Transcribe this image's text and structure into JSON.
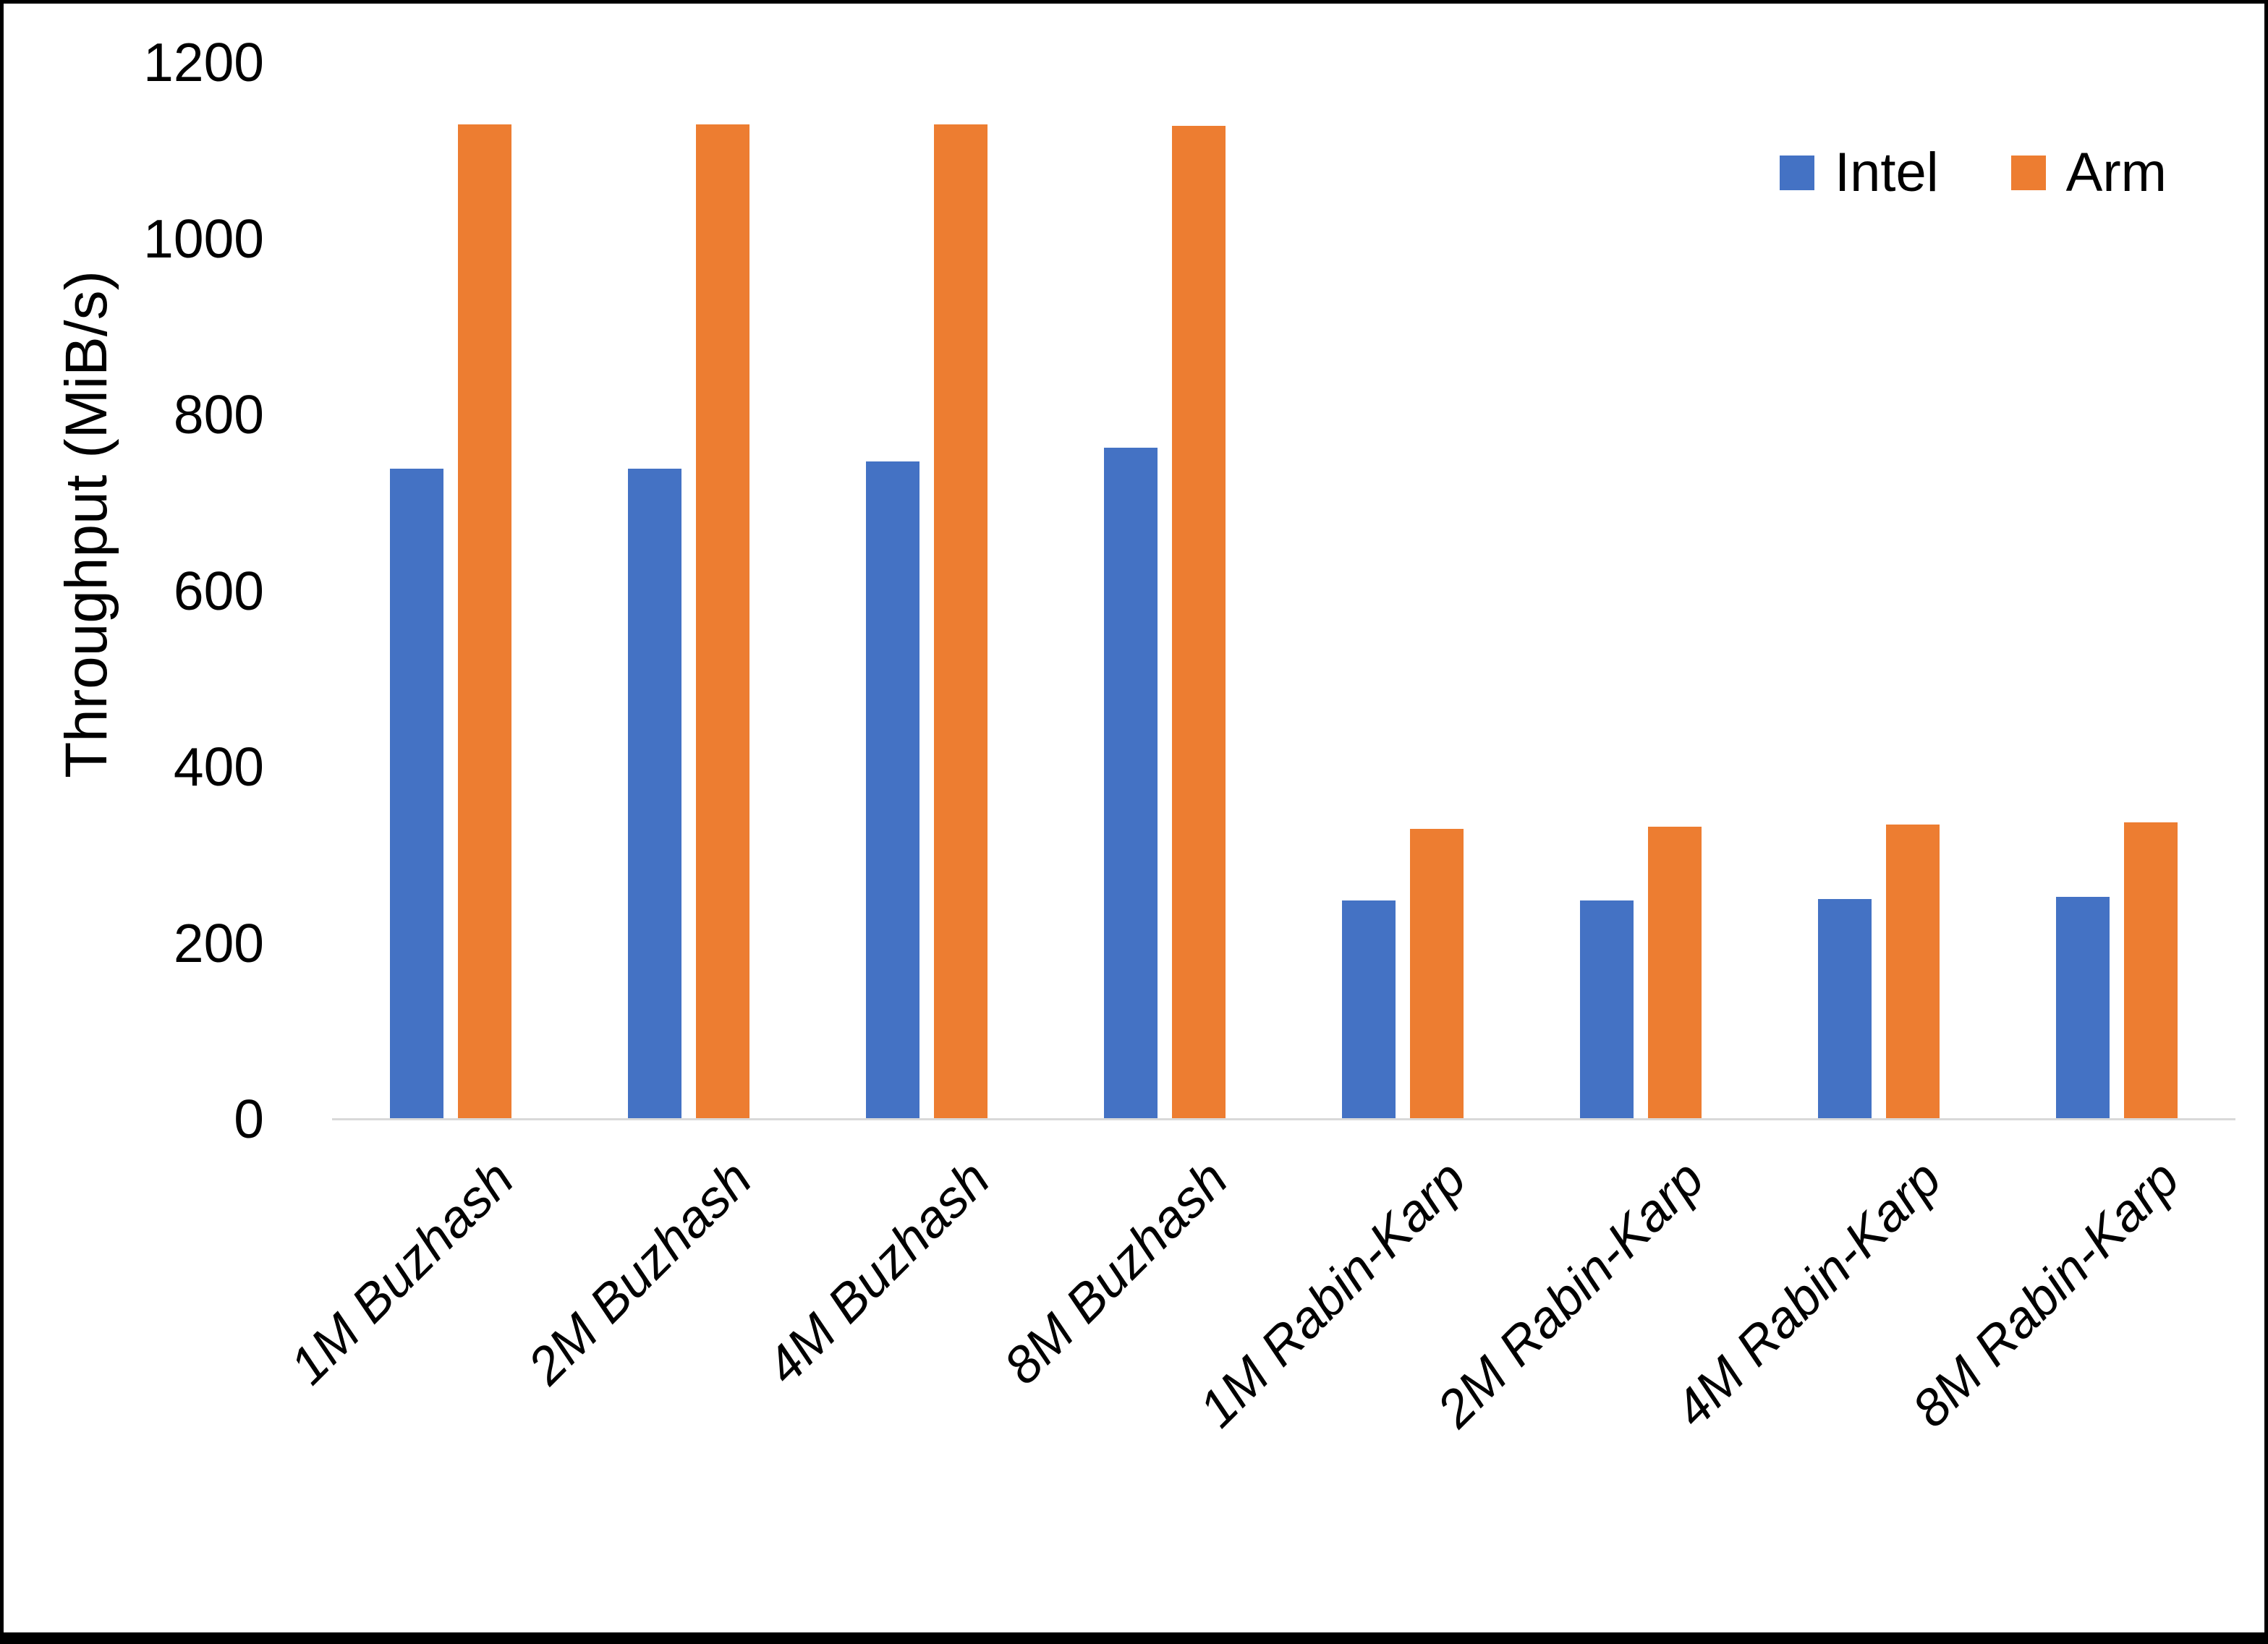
{
  "figure": {
    "background": "#FFFFFF",
    "frame_color": "#000000"
  },
  "chart_data": {
    "type": "bar",
    "title": "",
    "xlabel": "",
    "ylabel": "Throughput (MiB/s)",
    "categories": [
      "1M Buzhash",
      "2M Buzhash",
      "4M Buzhash",
      "8M Buzhash",
      "1M Rabin-Karp",
      "2M Rabin-Karp",
      "4M Rabin-Karp",
      "8M Rabin-Karp"
    ],
    "series": [
      {
        "name": "Intel",
        "color": "#4472C4",
        "values": [
          738,
          738,
          747,
          762,
          248,
          248,
          250,
          252
        ]
      },
      {
        "name": "Arm",
        "color": "#ED7D31",
        "values": [
          1129,
          1129,
          1129,
          1128,
          329,
          332,
          334,
          337
        ]
      }
    ],
    "ylim": [
      0,
      1200
    ],
    "yticks": [
      0,
      200,
      400,
      600,
      800,
      1000,
      1200
    ],
    "grid": false,
    "legend_position": "top-right",
    "axis_line_color": "#D9D9D9",
    "text_color": "#000000"
  }
}
